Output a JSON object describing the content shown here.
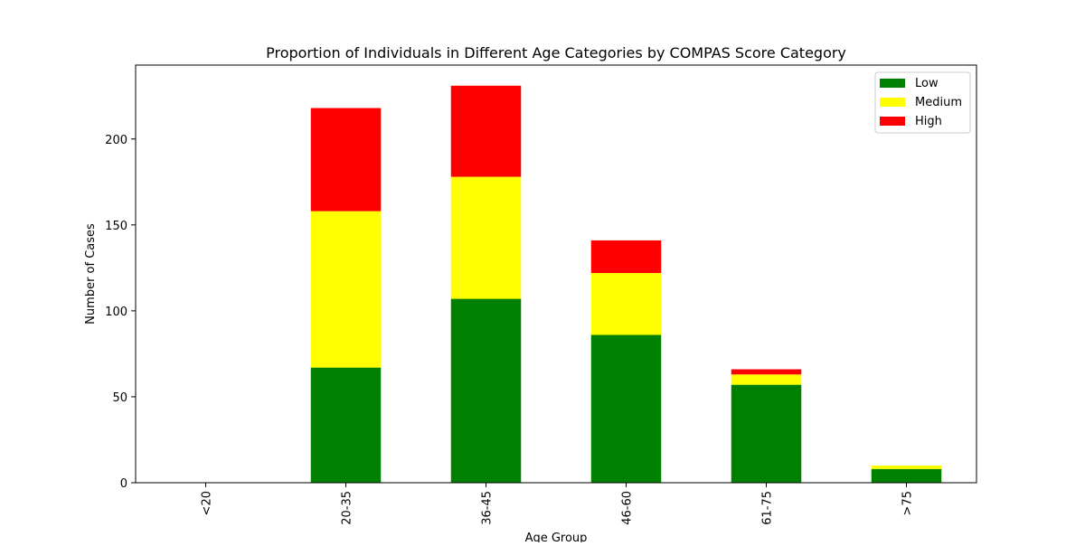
{
  "chart_data": {
    "type": "bar",
    "stacked": true,
    "title": "Proportion of Individuals in Different Age Categories by COMPAS Score Category",
    "xlabel": "Age Group",
    "ylabel": "Number of Cases",
    "categories": [
      "<20",
      "20-35",
      "36-45",
      "46-60",
      "61-75",
      ">75"
    ],
    "series": [
      {
        "name": "Low",
        "color": "#008000",
        "values": [
          0,
          67,
          107,
          86,
          57,
          8
        ]
      },
      {
        "name": "Medium",
        "color": "#ffff00",
        "values": [
          0,
          91,
          71,
          36,
          6,
          2
        ]
      },
      {
        "name": "High",
        "color": "#ff0000",
        "values": [
          0,
          60,
          53,
          19,
          3,
          0
        ]
      }
    ],
    "ylim": [
      0,
      243
    ],
    "yticks": [
      0,
      50,
      100,
      150,
      200
    ],
    "legend_position": "top-right",
    "grid": false
  }
}
